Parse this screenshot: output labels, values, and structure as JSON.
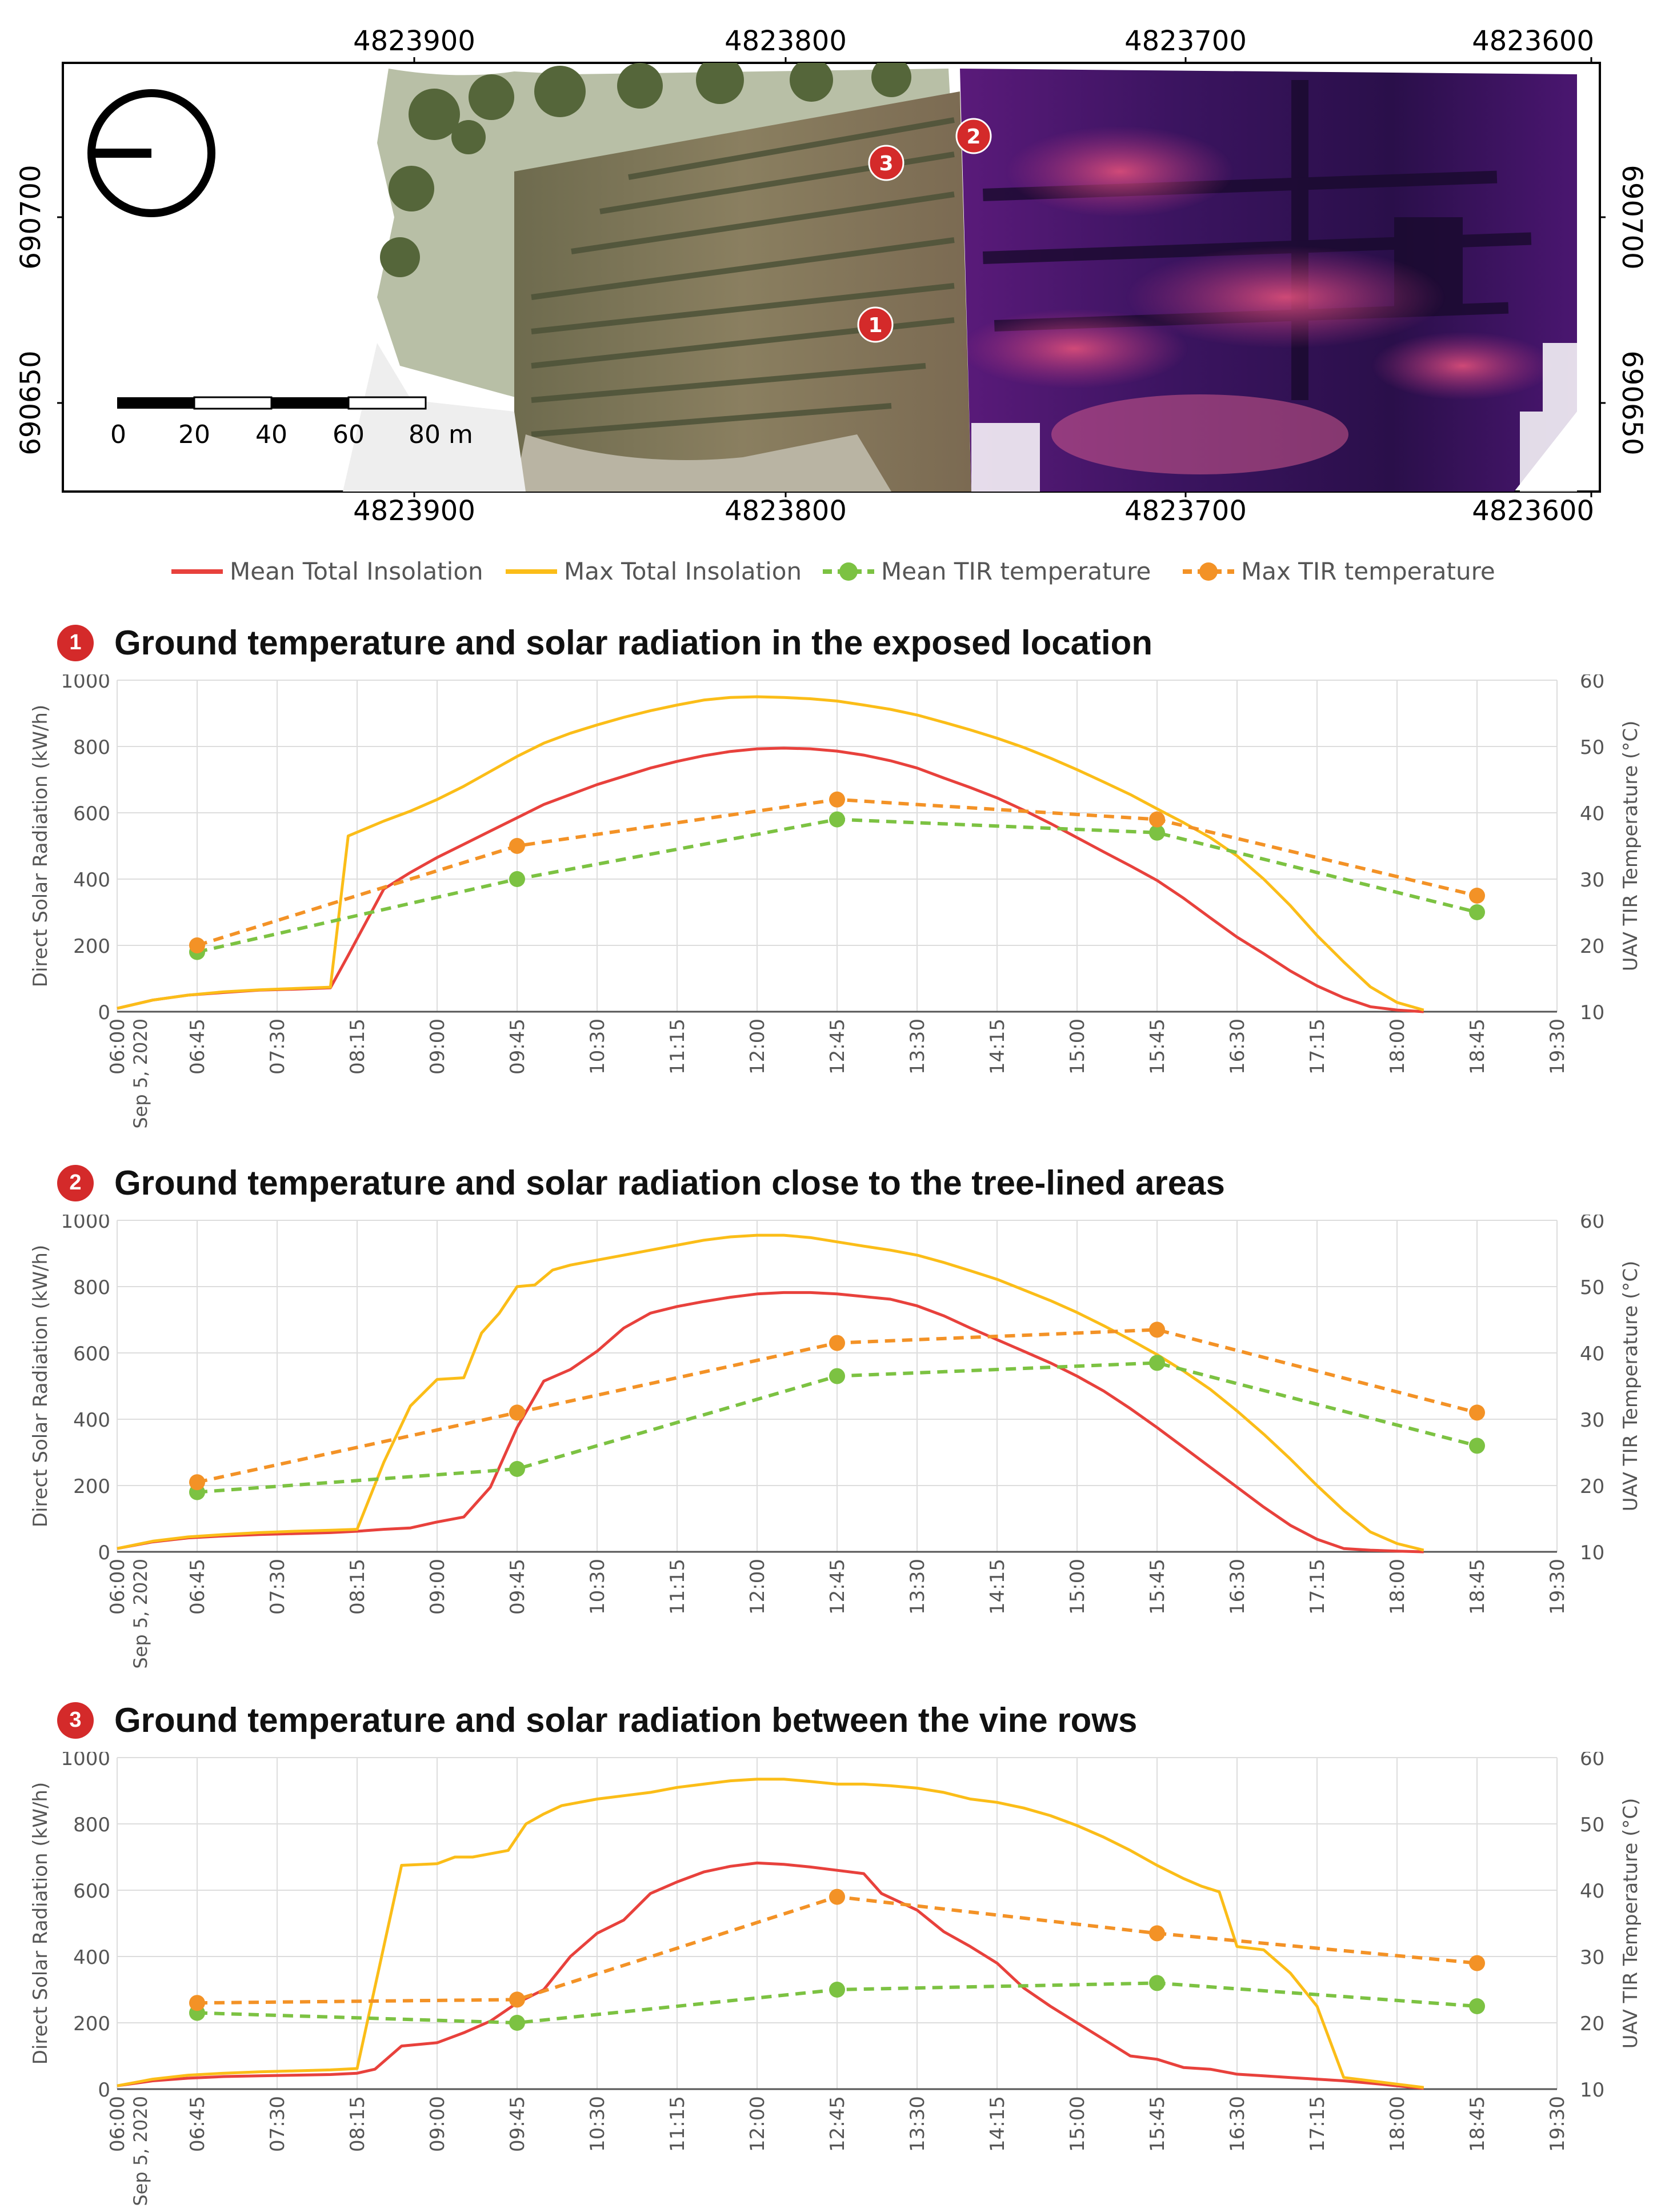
{
  "map": {
    "top_ticks": [
      "4823900",
      "4823800",
      "4823700",
      "4823600"
    ],
    "bottom_ticks": [
      "4823900",
      "4823800",
      "4823700",
      "4823600"
    ],
    "left_ticks": [
      "690700",
      "690650"
    ],
    "right_ticks": [
      "690700",
      "690650"
    ],
    "scale_labels": [
      "0",
      "20",
      "40",
      "60",
      "80 m"
    ],
    "markers": [
      "1",
      "2",
      "3"
    ]
  },
  "legend": [
    {
      "label": "Mean Total Insolation",
      "color": "#e8413c",
      "style": "solid"
    },
    {
      "label": "Max Total Insolation",
      "color": "#fbbd18",
      "style": "solid"
    },
    {
      "label": "Mean TIR temperature",
      "color": "#7cc242",
      "style": "dashed"
    },
    {
      "label": "Max TIR temperature",
      "color": "#f39226",
      "style": "dashed"
    }
  ],
  "chart_data": [
    {
      "type": "line",
      "marker": "1",
      "title": "Ground temperature and solar radiation in the exposed location",
      "ylabel": "Direct Solar Radiation (kW/h)",
      "y2label": "UAV TIR Temperature (°C)",
      "ylim": [
        0,
        1000
      ],
      "y2lim": [
        10,
        60
      ],
      "xlim": [
        "06:00",
        "19:30"
      ],
      "x_ticks": [
        "06:00",
        "06:45",
        "07:30",
        "08:15",
        "09:00",
        "09:45",
        "10:30",
        "11:15",
        "12:00",
        "12:45",
        "13:30",
        "14:15",
        "15:00",
        "15:45",
        "16:30",
        "17:15",
        "18:00",
        "18:45",
        "19:30"
      ],
      "x_date_label": "Sep 5, 2020",
      "y_ticks": [
        "0",
        "200",
        "400",
        "600",
        "800",
        "1000"
      ],
      "y2_ticks": [
        "10",
        "20",
        "30",
        "40",
        "50",
        "60"
      ],
      "grid": true,
      "series": [
        {
          "name": "Mean Total Insolation",
          "axis": "left",
          "x": [
            "06:00",
            "06:20",
            "06:40",
            "07:00",
            "07:20",
            "07:40",
            "08:00",
            "08:10",
            "08:30",
            "08:45",
            "09:00",
            "09:15",
            "09:30",
            "09:45",
            "10:00",
            "10:15",
            "10:30",
            "10:45",
            "11:00",
            "11:15",
            "11:30",
            "11:45",
            "12:00",
            "12:15",
            "12:30",
            "12:45",
            "13:00",
            "13:15",
            "13:30",
            "13:45",
            "14:00",
            "14:15",
            "14:30",
            "14:45",
            "15:00",
            "15:15",
            "15:30",
            "15:45",
            "16:00",
            "16:15",
            "16:30",
            "16:45",
            "17:00",
            "17:15",
            "17:30",
            "17:45",
            "18:00",
            "18:15"
          ],
          "values": [
            10,
            35,
            50,
            58,
            65,
            68,
            72,
            170,
            370,
            420,
            465,
            505,
            545,
            585,
            625,
            655,
            685,
            710,
            735,
            755,
            772,
            785,
            793,
            795,
            793,
            786,
            774,
            757,
            735,
            705,
            676,
            645,
            608,
            568,
            525,
            482,
            440,
            396,
            342,
            283,
            225,
            175,
            123,
            78,
            42,
            15,
            5,
            0
          ]
        },
        {
          "name": "Max Total Insolation",
          "axis": "left",
          "x": [
            "06:00",
            "06:20",
            "06:40",
            "07:00",
            "07:20",
            "07:40",
            "08:00",
            "08:10",
            "08:30",
            "08:45",
            "09:00",
            "09:15",
            "09:30",
            "09:45",
            "10:00",
            "10:15",
            "10:30",
            "10:45",
            "11:00",
            "11:15",
            "11:30",
            "11:45",
            "12:00",
            "12:15",
            "12:30",
            "12:45",
            "13:00",
            "13:15",
            "13:30",
            "13:45",
            "14:00",
            "14:15",
            "14:30",
            "14:45",
            "15:00",
            "15:15",
            "15:30",
            "15:45",
            "16:00",
            "16:15",
            "16:30",
            "16:45",
            "17:00",
            "17:15",
            "17:30",
            "17:45",
            "18:00",
            "18:15"
          ],
          "values": [
            10,
            35,
            50,
            60,
            66,
            70,
            74,
            530,
            575,
            605,
            640,
            680,
            725,
            770,
            810,
            840,
            865,
            888,
            908,
            925,
            940,
            948,
            950,
            948,
            944,
            937,
            925,
            912,
            895,
            873,
            850,
            825,
            797,
            765,
            730,
            693,
            655,
            612,
            570,
            525,
            470,
            400,
            320,
            230,
            150,
            75,
            28,
            5
          ]
        },
        {
          "name": "Mean TIR temperature",
          "axis": "right",
          "x": [
            "06:45",
            "09:45",
            "12:45",
            "15:45",
            "18:45"
          ],
          "values": [
            19,
            30,
            39,
            37,
            25
          ]
        },
        {
          "name": "Max TIR temperature",
          "axis": "right",
          "x": [
            "06:45",
            "09:45",
            "12:45",
            "15:45",
            "18:45"
          ],
          "values": [
            20,
            35,
            42,
            39,
            27.5
          ]
        }
      ]
    },
    {
      "type": "line",
      "marker": "2",
      "title": "Ground temperature and solar radiation close to the tree-lined areas",
      "ylabel": "Direct Solar Radiation (kW/h)",
      "y2label": "UAV TIR Temperature (°C)",
      "ylim": [
        0,
        1000
      ],
      "y2lim": [
        10,
        60
      ],
      "xlim": [
        "06:00",
        "19:30"
      ],
      "x_ticks": [
        "06:00",
        "06:45",
        "07:30",
        "08:15",
        "09:00",
        "09:45",
        "10:30",
        "11:15",
        "12:00",
        "12:45",
        "13:30",
        "14:15",
        "15:00",
        "15:45",
        "16:30",
        "17:15",
        "18:00",
        "18:45",
        "19:30"
      ],
      "x_date_label": "Sep 5, 2020",
      "y_ticks": [
        "0",
        "200",
        "400",
        "600",
        "800",
        "1000"
      ],
      "y2_ticks": [
        "10",
        "20",
        "30",
        "40",
        "50",
        "60"
      ],
      "grid": true,
      "series": [
        {
          "name": "Mean Total Insolation",
          "axis": "left",
          "x": [
            "06:00",
            "06:20",
            "06:40",
            "07:00",
            "07:20",
            "07:40",
            "08:00",
            "08:15",
            "08:30",
            "08:45",
            "09:00",
            "09:15",
            "09:30",
            "09:45",
            "10:00",
            "10:15",
            "10:30",
            "10:45",
            "11:00",
            "11:15",
            "11:30",
            "11:45",
            "12:00",
            "12:15",
            "12:30",
            "12:45",
            "13:00",
            "13:15",
            "13:30",
            "13:45",
            "14:00",
            "14:15",
            "14:30",
            "14:45",
            "15:00",
            "15:15",
            "15:30",
            "15:45",
            "16:00",
            "16:15",
            "16:30",
            "16:45",
            "17:00",
            "17:15",
            "17:30",
            "17:45",
            "18:00",
            "18:15"
          ],
          "values": [
            10,
            30,
            42,
            48,
            52,
            55,
            58,
            62,
            68,
            72,
            90,
            105,
            195,
            375,
            515,
            550,
            605,
            675,
            720,
            740,
            755,
            768,
            778,
            782,
            782,
            778,
            770,
            762,
            742,
            712,
            675,
            640,
            605,
            570,
            530,
            485,
            432,
            375,
            315,
            255,
            195,
            135,
            80,
            38,
            10,
            5,
            2,
            0
          ]
        },
        {
          "name": "Max Total Insolation",
          "axis": "left",
          "x": [
            "06:00",
            "06:20",
            "06:40",
            "07:00",
            "07:20",
            "07:40",
            "08:00",
            "08:15",
            "08:30",
            "08:45",
            "09:00",
            "09:15",
            "09:25",
            "09:35",
            "09:45",
            "09:55",
            "10:05",
            "10:15",
            "10:30",
            "10:45",
            "11:00",
            "11:15",
            "11:30",
            "11:45",
            "12:00",
            "12:15",
            "12:30",
            "12:45",
            "13:00",
            "13:15",
            "13:30",
            "13:45",
            "14:00",
            "14:15",
            "14:30",
            "14:45",
            "15:00",
            "15:15",
            "15:30",
            "15:45",
            "16:00",
            "16:15",
            "16:30",
            "16:45",
            "17:00",
            "17:15",
            "17:30",
            "17:45",
            "18:00",
            "18:15"
          ],
          "values": [
            10,
            32,
            45,
            52,
            58,
            62,
            65,
            68,
            270,
            440,
            520,
            525,
            660,
            720,
            800,
            805,
            850,
            865,
            880,
            895,
            910,
            925,
            940,
            950,
            955,
            955,
            948,
            935,
            922,
            910,
            895,
            873,
            848,
            822,
            790,
            758,
            722,
            682,
            640,
            595,
            545,
            490,
            425,
            355,
            280,
            200,
            125,
            60,
            25,
            5
          ]
        },
        {
          "name": "Mean TIR temperature",
          "axis": "right",
          "x": [
            "06:45",
            "09:45",
            "12:45",
            "15:45",
            "18:45"
          ],
          "values": [
            19,
            22.5,
            36.5,
            38.5,
            26
          ]
        },
        {
          "name": "Max TIR temperature",
          "axis": "right",
          "x": [
            "06:45",
            "09:45",
            "12:45",
            "15:45",
            "18:45"
          ],
          "values": [
            20.5,
            31,
            41.5,
            43.5,
            31
          ]
        }
      ]
    },
    {
      "type": "line",
      "marker": "3",
      "title": "Ground temperature and solar radiation between the vine rows",
      "ylabel": "Direct Solar Radiation (kW/h)",
      "y2label": "UAV TIR Temperature (°C)",
      "ylim": [
        0,
        1000
      ],
      "y2lim": [
        10,
        60
      ],
      "xlim": [
        "06:00",
        "19:30"
      ],
      "x_ticks": [
        "06:00",
        "06:45",
        "07:30",
        "08:15",
        "09:00",
        "09:45",
        "10:30",
        "11:15",
        "12:00",
        "12:45",
        "13:30",
        "14:15",
        "15:00",
        "15:45",
        "16:30",
        "17:15",
        "18:00",
        "18:45",
        "19:30"
      ],
      "x_date_label": "Sep 5, 2020",
      "y_ticks": [
        "0",
        "200",
        "400",
        "600",
        "800",
        "1000"
      ],
      "y2_ticks": [
        "10",
        "20",
        "30",
        "40",
        "50",
        "60"
      ],
      "grid": true,
      "series": [
        {
          "name": "Mean Total Insolation",
          "axis": "left",
          "x": [
            "06:00",
            "06:20",
            "06:40",
            "07:00",
            "07:20",
            "07:40",
            "08:00",
            "08:15",
            "08:25",
            "08:40",
            "09:00",
            "09:15",
            "09:30",
            "09:45",
            "10:00",
            "10:15",
            "10:30",
            "10:45",
            "11:00",
            "11:15",
            "11:30",
            "11:45",
            "12:00",
            "12:15",
            "12:30",
            "12:45",
            "13:00",
            "13:10",
            "13:30",
            "13:45",
            "14:00",
            "14:15",
            "14:30",
            "14:45",
            "15:00",
            "15:15",
            "15:30",
            "15:45",
            "16:00",
            "16:15",
            "16:30",
            "16:45",
            "17:00",
            "17:15",
            "17:30",
            "17:45",
            "18:00",
            "18:15"
          ],
          "values": [
            10,
            25,
            33,
            38,
            40,
            42,
            44,
            48,
            60,
            130,
            140,
            170,
            205,
            260,
            300,
            400,
            470,
            510,
            590,
            625,
            655,
            672,
            682,
            678,
            670,
            660,
            650,
            590,
            540,
            475,
            430,
            380,
            305,
            250,
            200,
            150,
            100,
            90,
            65,
            60,
            45,
            40,
            35,
            30,
            25,
            18,
            10,
            2
          ]
        },
        {
          "name": "Max Total Insolation",
          "axis": "left",
          "x": [
            "06:00",
            "06:20",
            "06:40",
            "07:00",
            "07:20",
            "07:40",
            "08:00",
            "08:15",
            "08:40",
            "09:00",
            "09:10",
            "09:20",
            "09:30",
            "09:40",
            "09:50",
            "10:00",
            "10:10",
            "10:20",
            "10:30",
            "10:45",
            "11:00",
            "11:15",
            "11:30",
            "11:45",
            "12:00",
            "12:15",
            "12:30",
            "12:45",
            "13:00",
            "13:15",
            "13:30",
            "13:45",
            "14:00",
            "14:15",
            "14:30",
            "14:45",
            "15:00",
            "15:15",
            "15:30",
            "15:45",
            "16:00",
            "16:10",
            "16:20",
            "16:30",
            "16:45",
            "17:00",
            "17:15",
            "17:30",
            "17:45",
            "18:00",
            "18:15"
          ],
          "values": [
            10,
            30,
            42,
            48,
            52,
            55,
            58,
            62,
            675,
            680,
            700,
            700,
            710,
            720,
            800,
            830,
            855,
            865,
            875,
            885,
            895,
            910,
            920,
            930,
            935,
            935,
            928,
            920,
            920,
            915,
            908,
            895,
            875,
            865,
            848,
            825,
            795,
            760,
            720,
            675,
            635,
            612,
            595,
            430,
            420,
            350,
            250,
            35,
            25,
            15,
            5
          ]
        },
        {
          "name": "Mean TIR temperature",
          "axis": "right",
          "x": [
            "06:45",
            "09:45",
            "12:45",
            "15:45",
            "18:45"
          ],
          "values": [
            21.5,
            20,
            25,
            26,
            22.5
          ]
        },
        {
          "name": "Max TIR temperature",
          "axis": "right",
          "x": [
            "06:45",
            "09:45",
            "12:45",
            "15:45",
            "18:45"
          ],
          "values": [
            23,
            23.5,
            39,
            33.5,
            29
          ]
        }
      ]
    }
  ]
}
